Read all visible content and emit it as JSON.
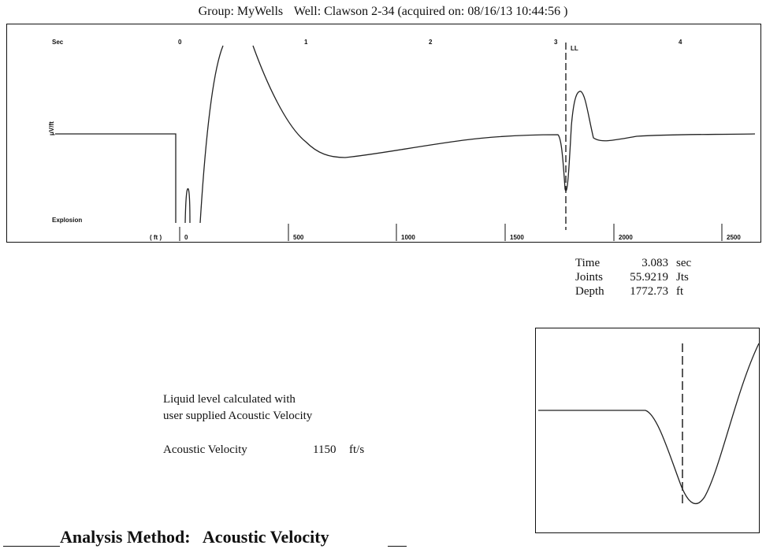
{
  "header": {
    "group_label": "Group: MyWells",
    "well_label": "Well: Clawson 2-34 (acquired on: 08/16/13 10:44:56 )"
  },
  "main_chart": {
    "time_unit_label": "Sec",
    "time_ticks": [
      "0",
      "1",
      "2",
      "3",
      "4"
    ],
    "marker_label": "LL",
    "explosion_label": "Explosion",
    "left_axis_label": "μV/ft",
    "depth_unit_label": "( ft )",
    "depth_ticks": [
      "0",
      "500",
      "1000",
      "1500",
      "2000",
      "2500"
    ]
  },
  "results": {
    "rows": [
      {
        "label": "Time",
        "value": "3.083",
        "unit": "sec"
      },
      {
        "label": "Joints",
        "value": "55.9219",
        "unit": "Jts"
      },
      {
        "label": "Depth",
        "value": "1772.73",
        "unit": "ft"
      }
    ]
  },
  "note": {
    "line1": "Liquid level calculated with",
    "line2": "user supplied Acoustic Velocity"
  },
  "acoustic_velocity": {
    "label": "Acoustic Velocity",
    "value": "1150",
    "unit": "ft/s"
  },
  "analysis_method": {
    "label": "Analysis Method:",
    "value": "Acoustic Velocity"
  },
  "colors": {
    "trace": "#222222",
    "frame": "#111111",
    "background": "#ffffff"
  },
  "chart_data": {
    "type": "line",
    "title": "",
    "xlabel": "Sec",
    "x_secondary_label": "( ft )",
    "xlim": [
      -0.55,
      4.3
    ],
    "x_ticks": [
      0,
      1,
      2,
      3,
      4
    ],
    "depth_ticks_ft": [
      0,
      500,
      1000,
      1500,
      2000,
      2500
    ],
    "marker": {
      "label": "LL",
      "x_sec": 3.083,
      "depth_ft": 1772.73
    },
    "grid": false,
    "legend": "none"
  }
}
